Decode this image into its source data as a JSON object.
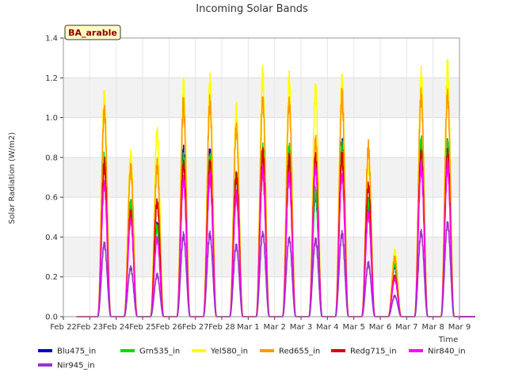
{
  "chart_data": {
    "type": "line",
    "title": "Incoming Solar Bands",
    "site_label": "BA_arable",
    "xlabel": "Time",
    "ylabel": "Solar Radiation (W/m2)",
    "ylim": [
      0,
      1.4
    ],
    "yticks": [
      0.0,
      0.2,
      0.4,
      0.6,
      0.8,
      1.0,
      1.2,
      1.4
    ],
    "ytick_labels": [
      "0.0",
      "0.2",
      "0.4",
      "0.6",
      "0.8",
      "1.0",
      "1.2",
      "1.4"
    ],
    "xlim": [
      "2023-02-22",
      "2023-03-09"
    ],
    "xticks": [
      "2023-02-22",
      "2023-02-23",
      "2023-02-24",
      "2023-02-25",
      "2023-02-26",
      "2023-02-27",
      "2023-02-28",
      "2023-03-01",
      "2023-03-02",
      "2023-03-03",
      "2023-03-04",
      "2023-03-05",
      "2023-03-06",
      "2023-03-07",
      "2023-03-08",
      "2023-03-09"
    ],
    "xtick_labels": [
      "Feb 22",
      "Feb 23",
      "Feb 24",
      "Feb 25",
      "Feb 26",
      "Feb 27",
      "Feb 28",
      "Mar 1",
      "Mar 2",
      "Mar 3",
      "Mar 4",
      "Mar 5",
      "Mar 6",
      "Mar 7",
      "Mar 8",
      "Mar 9"
    ],
    "grid": true,
    "legend_position": "bottom",
    "days": [
      "2023-02-23",
      "2023-02-24",
      "2023-02-25",
      "2023-02-26",
      "2023-02-27",
      "2023-02-28",
      "2023-03-01",
      "2023-03-02",
      "2023-03-03",
      "2023-03-04",
      "2023-03-05",
      "2023-03-06",
      "2023-03-07",
      "2023-03-08"
    ],
    "series": [
      {
        "name": "Blu475_in",
        "color": "#0000cc",
        "daily_peaks": [
          0.83,
          0.6,
          0.48,
          0.87,
          0.87,
          0.75,
          0.89,
          0.88,
          0.65,
          0.91,
          0.6,
          0.27,
          0.9,
          0.93
        ]
      },
      {
        "name": "Grn535_in",
        "color": "#00dd00",
        "daily_peaks": [
          0.83,
          0.6,
          0.48,
          0.86,
          0.86,
          0.76,
          0.89,
          0.88,
          0.66,
          0.9,
          0.62,
          0.28,
          0.95,
          0.92
        ]
      },
      {
        "name": "Yel580_in",
        "color": "#ffff00",
        "daily_peaks": [
          1.19,
          0.88,
          0.99,
          1.24,
          1.24,
          1.09,
          1.28,
          1.27,
          1.23,
          1.28,
          0.8,
          0.35,
          1.27,
          1.31
        ]
      },
      {
        "name": "Red655_in",
        "color": "#ff9900",
        "daily_peaks": [
          1.1,
          0.79,
          0.8,
          1.12,
          1.14,
          1.01,
          1.17,
          1.15,
          0.94,
          1.17,
          0.89,
          0.31,
          1.18,
          1.19
        ]
      },
      {
        "name": "Redg715_in",
        "color": "#dd0000",
        "daily_peaks": [
          0.8,
          0.55,
          0.61,
          0.82,
          0.83,
          0.75,
          0.87,
          0.83,
          0.83,
          0.85,
          0.7,
          0.22,
          0.88,
          0.87
        ]
      },
      {
        "name": "Nir840_in",
        "color": "#ff00ff",
        "daily_peaks": [
          0.71,
          0.52,
          0.42,
          0.73,
          0.74,
          0.64,
          0.77,
          0.75,
          0.8,
          0.76,
          0.55,
          0.2,
          0.8,
          0.8
        ]
      },
      {
        "name": "Nir945_in",
        "color": "#9933cc",
        "daily_peaks": [
          0.39,
          0.26,
          0.22,
          0.43,
          0.44,
          0.38,
          0.45,
          0.42,
          0.41,
          0.44,
          0.28,
          0.11,
          0.45,
          0.5
        ]
      }
    ]
  }
}
